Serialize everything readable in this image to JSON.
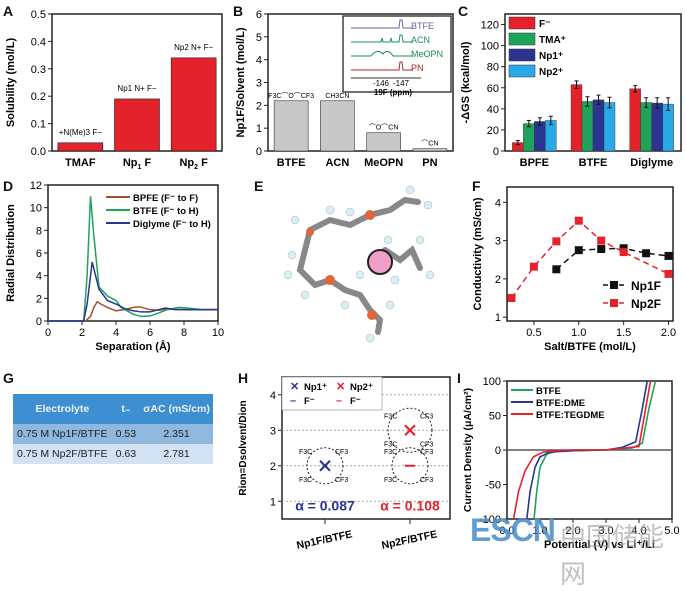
{
  "panel_labels": [
    "A",
    "B",
    "C",
    "D",
    "E",
    "F",
    "G",
    "H",
    "I"
  ],
  "chart_data": [
    {
      "id": "A",
      "type": "bar",
      "categories": [
        "TMAF",
        "Np1F",
        "Np2F"
      ],
      "category_labels": [
        {
          "main": "TMAF",
          "sub": ""
        },
        {
          "main": "Np",
          "sub": "1",
          "tail": " F"
        },
        {
          "main": "Np",
          "sub": "2",
          "tail": " F"
        }
      ],
      "values": [
        0.03,
        0.19,
        0.34
      ],
      "ylabel": "Solubility (mol/L)",
      "ylim": [
        0,
        0.5
      ],
      "yticks": [
        0.0,
        0.1,
        0.2,
        0.3,
        0.4,
        0.5
      ],
      "ytick_labels": [
        "0.0",
        "0.1",
        "0.2",
        "0.3",
        "0.4",
        "0.5"
      ],
      "color": "#e3222b",
      "structure_annotations": [
        "+N(Me)3 F−",
        "Np1 N+ F−",
        "Np2 N+ F−"
      ]
    },
    {
      "id": "B",
      "type": "bar",
      "categories": [
        "BTFE",
        "ACN",
        "MeOPN",
        "PN"
      ],
      "values": [
        2.2,
        2.2,
        0.8,
        0.1
      ],
      "ylabel": "Np1F/Solvent (mol/L)",
      "ylim": [
        0,
        6
      ],
      "yticks": [
        0,
        1,
        2,
        3,
        4,
        5,
        6
      ],
      "color": "#c8c8c8",
      "bar_annotations": [
        "F3C⌒O⌒CF3",
        "CH3CN",
        "⌒O⌒CN",
        "⌒CN"
      ],
      "inset": {
        "xlabel": "19F (ppm)",
        "xticks": [
          "-146",
          "-147"
        ],
        "series": [
          {
            "name": "BTFE",
            "color": "#6b5fa8"
          },
          {
            "name": "ACN",
            "color": "#1e8c78"
          },
          {
            "name": "MeOPN",
            "color": "#1e8c50"
          },
          {
            "name": "PN",
            "color": "#a52a2a"
          }
        ]
      }
    },
    {
      "id": "C",
      "type": "bar",
      "categories": [
        "BPFE",
        "BTFE",
        "Diglyme"
      ],
      "ylabel": "-ΔGS (kcal/mol)",
      "ylim": [
        0,
        130
      ],
      "yticks": [
        0,
        20,
        40,
        60,
        80,
        100,
        120
      ],
      "legend_position": "top-left",
      "series": [
        {
          "name": "F⁻",
          "color": "#e3222b",
          "values": [
            8,
            63,
            59
          ],
          "errors": [
            2,
            3.5,
            3
          ]
        },
        {
          "name": "TMA⁺",
          "color": "#1fa35a",
          "values": [
            26,
            47,
            46
          ],
          "errors": [
            3,
            4.5,
            4.5
          ]
        },
        {
          "name": "Np1⁺",
          "color": "#2b3490",
          "values": [
            28,
            48.5,
            45.5
          ],
          "errors": [
            3.5,
            4.5,
            5
          ]
        },
        {
          "name": "Np2⁺",
          "color": "#29a9e8",
          "values": [
            29,
            46,
            44.5
          ],
          "errors": [
            4,
            5,
            6
          ]
        }
      ]
    },
    {
      "id": "D",
      "type": "line",
      "xlabel": "Separation (Å)",
      "ylabel": "Radial Distribution",
      "xlim": [
        0,
        10
      ],
      "ylim": [
        0,
        12
      ],
      "xticks": [
        0,
        2,
        4,
        6,
        8,
        10
      ],
      "yticks": [
        0,
        2,
        4,
        6,
        8,
        10,
        12
      ],
      "legend_position": "top-right",
      "series": [
        {
          "name": "BPFE (F⁻ to F)",
          "color": "#a0522d",
          "x": [
            0,
            2.2,
            2.5,
            2.7,
            2.9,
            3.1,
            3.5,
            4.0,
            4.5,
            5.0,
            5.4,
            6.0,
            6.5,
            7.0,
            8.0,
            9.0,
            10
          ],
          "y": [
            0,
            0,
            0.4,
            1.2,
            1.7,
            1.5,
            1.2,
            0.9,
            1.0,
            1.2,
            1.25,
            1.0,
            0.95,
            1.05,
            1.0,
            1.0,
            1.0
          ]
        },
        {
          "name": "BTFE (F⁻ to H)",
          "color": "#1fa35a",
          "x": [
            0,
            2.1,
            2.3,
            2.5,
            2.7,
            3.0,
            3.5,
            4.0,
            4.3,
            5.0,
            5.5,
            6.0,
            6.5,
            7.0,
            7.7,
            8.5,
            9.0,
            10
          ],
          "y": [
            0,
            0,
            4.0,
            11.0,
            7.5,
            3.0,
            2.2,
            1.8,
            1.2,
            0.6,
            0.4,
            0.45,
            0.7,
            1.0,
            1.2,
            1.1,
            1.0,
            1.0
          ]
        },
        {
          "name": "Diglyme (F⁻ to H)",
          "color": "#2b3490",
          "x": [
            0,
            2.1,
            2.3,
            2.6,
            2.8,
            3.0,
            3.5,
            4.0,
            4.5,
            5.0,
            5.5,
            6.0,
            6.5,
            6.9,
            7.5,
            8.5,
            10
          ],
          "y": [
            0,
            0,
            1.5,
            5.2,
            4.0,
            2.8,
            1.8,
            1.5,
            1.1,
            0.9,
            0.8,
            0.8,
            1.0,
            1.15,
            1.0,
            1.0,
            1.0
          ]
        }
      ]
    },
    {
      "id": "F",
      "type": "line",
      "xlabel": "Salt/BTFE (mol/L)",
      "ylabel": "Conductivity (mS/cm)",
      "xlim": [
        0.2,
        2.05
      ],
      "ylim": [
        0.9,
        4.4
      ],
      "xticks": [
        0.5,
        1.0,
        1.5,
        2.0
      ],
      "xtick_labels": [
        "0.5",
        "1.0",
        "1.5",
        "2.0"
      ],
      "yticks": [
        1,
        2,
        3,
        4
      ],
      "legend_position": "bottom-right",
      "series": [
        {
          "name": "Np1F",
          "color": "#111111",
          "x": [
            0.75,
            1.0,
            1.25,
            1.5,
            1.75,
            2.0
          ],
          "y": [
            2.25,
            2.75,
            2.78,
            2.8,
            2.67,
            2.6
          ]
        },
        {
          "name": "Np2F",
          "color": "#e3222b",
          "x": [
            0.25,
            0.5,
            0.75,
            1.0,
            1.25,
            1.5,
            2.0
          ],
          "y": [
            1.5,
            2.32,
            2.98,
            3.52,
            3.0,
            2.7,
            2.13
          ]
        }
      ]
    },
    {
      "id": "H",
      "type": "scatter",
      "ylabel": "Rion=Dsolvent/Dion",
      "ylim": [
        0.5,
        4.5
      ],
      "yticks": [
        1,
        2,
        3,
        4
      ],
      "categories": [
        "Np1F/BTFE",
        "Np2F/BTFE"
      ],
      "points": [
        {
          "category": "Np1F/BTFE",
          "species": "Np1⁺",
          "marker": "x",
          "color": "#2b3490",
          "y": 2.0
        },
        {
          "category": "Np1F/BTFE",
          "species": "F⁻",
          "marker": "dash",
          "color": "#2b3490",
          "y": 2.0
        },
        {
          "category": "Np2F/BTFE",
          "species": "Np2⁺",
          "marker": "x",
          "color": "#e3222b",
          "y": 3.0
        },
        {
          "category": "Np2F/BTFE",
          "species": "F⁻",
          "marker": "dash",
          "color": "#e3222b",
          "y": 2.0
        }
      ],
      "alphas": [
        {
          "text": "α = 0.087",
          "color": "#2b3490"
        },
        {
          "text": "α = 0.108",
          "color": "#e3222b"
        }
      ],
      "legend": [
        {
          "symbol": "✕",
          "label": "Np1⁺",
          "color": "#2b3490"
        },
        {
          "symbol": "✕",
          "label": "Np2⁺",
          "color": "#e3222b"
        },
        {
          "symbol": "–",
          "label": "F⁻",
          "color": "#2b3490"
        },
        {
          "symbol": "–",
          "label": "F⁻",
          "color": "#e3222b"
        }
      ],
      "cluster_labels": [
        "F3C",
        "O",
        "CF3"
      ]
    },
    {
      "id": "I",
      "type": "line",
      "xlabel": "Potential (V) vs Li⁺/Li",
      "ylabel": "Current Density (μA/cm²)",
      "xlim": [
        0,
        5
      ],
      "ylim": [
        -100,
        100
      ],
      "xticks": [
        0,
        1,
        2,
        3,
        4,
        5
      ],
      "xtick_labels": [
        "0.0",
        "1.0",
        "2.0",
        "3.0",
        "4.0",
        "5.0"
      ],
      "yticks": [
        -100,
        -50,
        0,
        50,
        100
      ],
      "legend_position": "top-left",
      "series": [
        {
          "name": "BTFE",
          "color": "#1fa35a",
          "x": [
            0.82,
            0.9,
            1.0,
            1.2,
            1.5,
            2.0,
            3.0,
            3.8,
            4.1,
            4.3,
            4.5
          ],
          "y": [
            -100,
            -60,
            -25,
            -6,
            -2,
            -1,
            0,
            3,
            10,
            60,
            100
          ]
        },
        {
          "name": "BTFE:DME",
          "color": "#2b3490",
          "x": [
            0.6,
            0.7,
            0.85,
            1.0,
            1.3,
            2.0,
            3.0,
            3.5,
            3.9,
            4.1,
            4.25
          ],
          "y": [
            -100,
            -60,
            -25,
            -10,
            -3,
            -1,
            0,
            4,
            12,
            60,
            100
          ]
        },
        {
          "name": "BTFE:TEGDME",
          "color": "#e3222b",
          "x": [
            0.2,
            0.35,
            0.55,
            0.8,
            1.1,
            1.5,
            2.0,
            3.0,
            4.0,
            4.2,
            4.35
          ],
          "y": [
            -100,
            -60,
            -30,
            -10,
            -3,
            -1,
            0,
            0,
            5,
            60,
            100
          ]
        }
      ]
    }
  ],
  "table_G": {
    "headers": [
      "Electrolyte",
      "t₋",
      "σAC (mS/cm)"
    ],
    "rows": [
      [
        "0.75 M Np1F/BTFE",
        "0.53",
        "2.351"
      ],
      [
        "0.75 M Np2F/BTFE",
        "0.63",
        "2.781"
      ]
    ]
  },
  "watermark": {
    "latin": "ESCN",
    "cjk": "中国储能网"
  }
}
